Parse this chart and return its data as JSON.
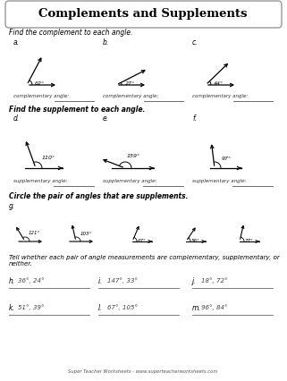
{
  "title": "Complements and Supplements",
  "bg_color": "#f0ede8",
  "border_color": "#999999",
  "text_color": "#222222",
  "section1_title": "Find the complement to each angle.",
  "section2_title": "Find the supplement to each angle.",
  "section3_title": "Circle the pair of angles that are supplements.",
  "section4_title": "Tell whether each pair of angle measurements are complementary, supplementary, or neither.",
  "complement_angles": [
    62,
    27,
    44
  ],
  "supplement_angles": [
    110,
    159,
    97
  ],
  "circle_angles": [
    121,
    103,
    67,
    56,
    77
  ],
  "tell_pairs": [
    [
      "36°, 24°",
      "147°, 33°",
      "18°, 72°"
    ],
    [
      "51°, 39°",
      "67°, 105°",
      "96°, 84°"
    ]
  ],
  "tell_labels_row1": [
    "h.",
    "i.",
    "j."
  ],
  "tell_labels_row2": [
    "k.",
    "l.",
    "m."
  ],
  "footer": "Super Teacher Worksheets - www.superteacherworksheets.com"
}
